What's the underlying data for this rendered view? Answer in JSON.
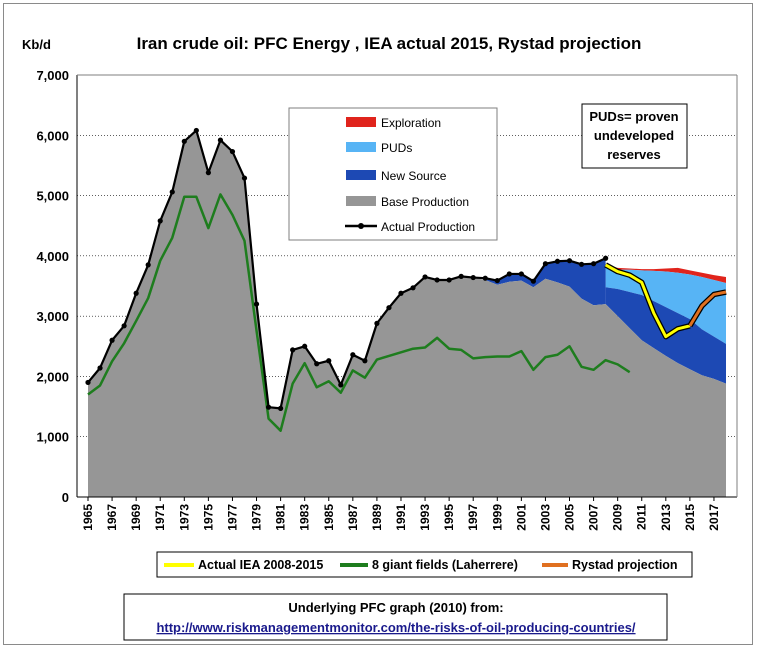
{
  "title": "Iran crude oil: PFC Energy , IEA actual  2015, Rystad projection",
  "y_unit": "Kb/d",
  "note": [
    "PUDs= proven",
    "undeveloped",
    "reserves"
  ],
  "source_line1": "Underlying PFC graph (2010) from:",
  "source_line2": "http://www.riskmanagementmonitor.com/the-risks-of-oil-producing-countries/",
  "colors": {
    "exploration": "#e0241c",
    "puds": "#57b4f5",
    "new_source": "#1d49b4",
    "base": "#969696",
    "actual": "#000000",
    "iea": "#ffff00",
    "giants": "#1e7d1e",
    "rystad": "#e07020"
  },
  "chart_data": {
    "type": "area",
    "title": "Iran crude oil: PFC Energy , IEA actual  2015, Rystad projection",
    "ylabel": "Kb/d",
    "ylim": [
      0,
      7000
    ],
    "yticks": [
      "0",
      "1,000",
      "2,000",
      "3,000",
      "4,000",
      "5,000",
      "6,000",
      "7,000"
    ],
    "xlim": [
      1965,
      2018
    ],
    "xticks": [
      "1965",
      "1967",
      "1969",
      "1971",
      "1973",
      "1975",
      "1977",
      "1979",
      "1981",
      "1983",
      "1985",
      "1987",
      "1989",
      "1991",
      "1993",
      "1995",
      "1997",
      "1999",
      "2001",
      "2003",
      "2005",
      "2007",
      "2009",
      "2011",
      "2013",
      "2015",
      "2017"
    ],
    "grid": true,
    "legend_inside": [
      "Exploration",
      "PUDs",
      "New Source",
      "Base Production",
      "Actual Production"
    ],
    "legend_bottom": [
      "Actual IEA 2008-2015",
      "8 giant fields (Laherrere)",
      "Rystad projection"
    ],
    "years": [
      1965,
      1966,
      1967,
      1968,
      1969,
      1970,
      1971,
      1972,
      1973,
      1974,
      1975,
      1976,
      1977,
      1978,
      1979,
      1980,
      1981,
      1982,
      1983,
      1984,
      1985,
      1986,
      1987,
      1988,
      1989,
      1990,
      1991,
      1992,
      1993,
      1994,
      1995,
      1996,
      1997,
      1998,
      1999,
      2000,
      2001,
      2002,
      2003,
      2004,
      2005,
      2006,
      2007,
      2008
    ],
    "actual_production": [
      1900,
      2140,
      2600,
      2840,
      3380,
      3850,
      4580,
      5060,
      5900,
      6080,
      5380,
      5920,
      5730,
      5290,
      3200,
      1490,
      1470,
      2440,
      2500,
      2210,
      2260,
      1860,
      2360,
      2260,
      2880,
      3140,
      3380,
      3470,
      3650,
      3600,
      3600,
      3660,
      3640,
      3630,
      3590,
      3700,
      3700,
      3580,
      3870,
      3910,
      3920,
      3860,
      3870,
      3960
    ],
    "forecast_years": [
      2008,
      2009,
      2010,
      2011,
      2012,
      2013,
      2014,
      2015,
      2016,
      2017,
      2018
    ],
    "base_forecast": [
      3200,
      3000,
      2800,
      2600,
      2470,
      2340,
      2220,
      2120,
      2020,
      1960,
      1880
    ],
    "new_source_top": [
      3480,
      3450,
      3400,
      3350,
      3250,
      3150,
      3050,
      2950,
      2780,
      2660,
      2540
    ],
    "puds_top": [
      3820,
      3770,
      3770,
      3760,
      3750,
      3740,
      3720,
      3690,
      3650,
      3600,
      3550
    ],
    "exploration_top": [
      3860,
      3800,
      3790,
      3780,
      3780,
      3790,
      3800,
      3760,
      3720,
      3680,
      3650
    ],
    "new_source_history": {
      "years": [
        1998,
        1999,
        2000,
        2001,
        2002,
        2003,
        2004,
        2005,
        2006,
        2007,
        2008
      ],
      "values": [
        3600,
        3520,
        3570,
        3590,
        3480,
        3620,
        3560,
        3490,
        3290,
        3180,
        3200
      ]
    },
    "iea_actual": {
      "years": [
        2008,
        2009,
        2010,
        2011,
        2012,
        2013,
        2014,
        2015
      ],
      "values": [
        3850,
        3740,
        3680,
        3560,
        3050,
        2660,
        2790,
        2840
      ]
    },
    "giant_fields": {
      "years": [
        1965,
        1966,
        1967,
        1968,
        1969,
        1970,
        1971,
        1972,
        1973,
        1974,
        1975,
        1976,
        1977,
        1978,
        1979,
        1980,
        1981,
        1982,
        1983,
        1984,
        1985,
        1986,
        1987,
        1988,
        1989,
        1990,
        1991,
        1992,
        1993,
        1994,
        1995,
        1996,
        1997,
        1998,
        1999,
        2000,
        2001,
        2002,
        2003,
        2004,
        2005,
        2006,
        2007,
        2008,
        2009,
        2010
      ],
      "values": [
        1700,
        1850,
        2250,
        2550,
        2920,
        3300,
        3920,
        4300,
        4980,
        4980,
        4460,
        5020,
        4680,
        4250,
        2760,
        1300,
        1100,
        1880,
        2220,
        1820,
        1920,
        1730,
        2100,
        1980,
        2280,
        2340,
        2400,
        2460,
        2480,
        2640,
        2460,
        2440,
        2300,
        2320,
        2330,
        2330,
        2420,
        2110,
        2320,
        2360,
        2500,
        2160,
        2110,
        2270,
        2200,
        2070
      ]
    },
    "rystad_projection": {
      "years": [
        2015,
        2016,
        2017,
        2018
      ],
      "values": [
        2840,
        3170,
        3360,
        3400
      ]
    }
  }
}
